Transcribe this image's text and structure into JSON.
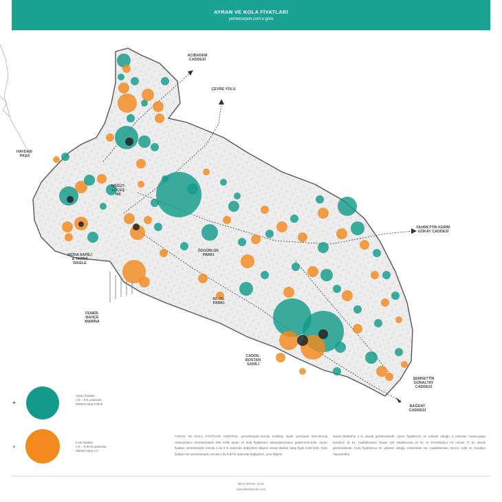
{
  "header": {
    "title": "AYRAN VE KOLA FİYATLARI",
    "subtitle": "yemeksepeti.com'a göre"
  },
  "colors": {
    "ayran": "#129b8a",
    "kola": "#f28a1e",
    "banner": "#1aa393",
    "dark_overlap": "#222222"
  },
  "map_labels": {
    "acibadem": "ACIBADEM\nCADDESİ",
    "cevre_yolu": "ÇEVRE YOLU",
    "haydarpasa": "HAYDAR-\nPAŞA",
    "sogutlucesme": "SÖĞÜT-\nLÜÇEŞ\nME",
    "fahrettin": "FAHRETTİN KERİM\nGÖKAY CADDESİ",
    "ozgurluk": "ÖZGÜRLÜK\nPARKI",
    "moda": "MODA SAHİLİ\n& TARİHİ\nİSKELE",
    "fenerbahce": "FENER-\nBAHÇE\nMARİNA",
    "park60": "60. YIL\nPARKI",
    "caddebostan": "CADDE-\nBOSTAN\nSAHİLİ",
    "semsettin": "ŞEMSETTİN\nGÜNALTAY\nCADDESİ",
    "bagdat": "BAĞDAT\nCADDESİ"
  },
  "legend": {
    "ayran_text": "Ayran fiyatları\n1 ₺ – 8 ₺ arasında\nMarket satış 0.95 ₺",
    "kola_text": "Kola fiyatları\n2 ₺ – 8.50 ₺ arasında\nMarket satış 2 C"
  },
  "description": {
    "col1": "AYRAN VE KOLA FİYATLARI HARİTASI, yemeksepeti.com'da Kadıköy ilçesi içerisinde liste-lenmiş restoranların menülerindeki 300 ml'lik ayran ve kola fiyatlarının karşılaştırmasını göstermek-tedir. Ayran fiyatları yemeksepeti.com'da 1 ila 8 ₺ arasında değişirken Migros Sanal Market satış fiyatı 0.95 ₺'dir. Kola fiyatları ise yemeksepeti.com'da 2 ila 8.50 ₺ arasında değişirken, yine Migros",
    "col2": "Sanal Market'te 2 ₺ olarak görülmektedir. Ayran fiyatlarının en yüksek olduğu 3 restoran Hasan-paşa Karafırın (8 ₺), Caddebostan Özgür Şef Steakhouse (8 ₺) ve Fenerbahçe Fit House (7 ₺) olarak görülmektedir. Kola fiyatlarının en yüksek olduğu restoranlar ise Caddebostan Secco Cafe ve Suadiye Yapıanoldur."
  },
  "footer": {
    "credit": "Bits'n Bricks, 2013",
    "url": "www.bitsnbricks.com"
  }
}
